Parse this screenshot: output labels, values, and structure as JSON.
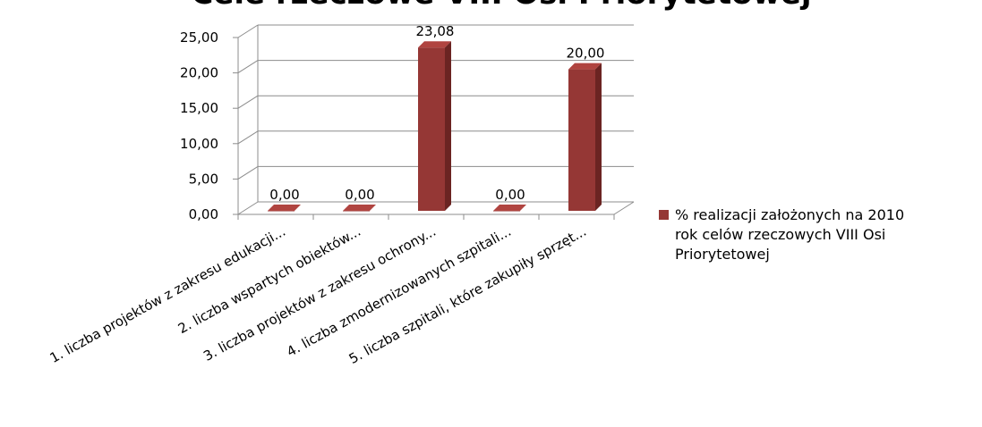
{
  "chart_data": {
    "type": "bar",
    "title": "Cele rzeczowe VIII Osi Priorytetowej",
    "categories": [
      "1. liczba projektów z zakresu edukacji...",
      "2. liczba wspartych obiektów...",
      "3. liczba projektów z zakresu ochrony...",
      "4. liczba zmodernizowanych szpitali...",
      "5. liczba szpitali, które zakupiły sprzęt..."
    ],
    "series": [
      {
        "name": "% realizacji założonych na 2010 rok celów rzeczowych VIII Osi Priorytetowej",
        "values": [
          0.0,
          0.0,
          23.08,
          0.0,
          20.0
        ],
        "color": "#953735"
      }
    ],
    "data_labels": [
      "0,00",
      "0,00",
      "23,08",
      "0,00",
      "20,00"
    ],
    "y_ticks": [
      "0,00",
      "5,00",
      "10,00",
      "15,00",
      "20,00",
      "25,00"
    ],
    "ylim": [
      0,
      25
    ],
    "grid": true,
    "legend": {
      "position": "right",
      "lines": [
        "% realizacji założonych na 2010",
        "rok celów rzeczowych VIII Osi",
        "Priorytetowej"
      ]
    }
  }
}
